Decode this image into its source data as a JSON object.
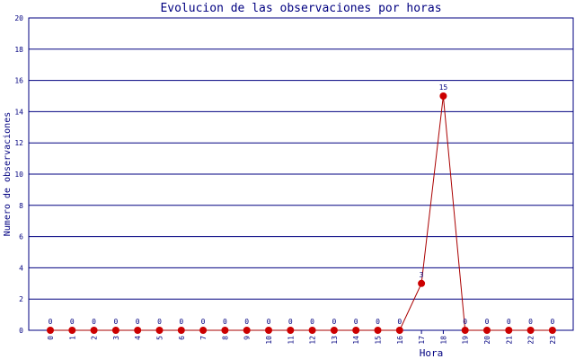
{
  "chart_data": {
    "type": "line",
    "title": "Evolucion de las observaciones por horas",
    "x_label": "Hora",
    "y_label": "Numero de observaciones",
    "categories": [
      "0",
      "1",
      "2",
      "3",
      "4",
      "5",
      "6",
      "7",
      "8",
      "9",
      "10",
      "11",
      "12",
      "13",
      "14",
      "15",
      "16",
      "17",
      "18",
      "19",
      "20",
      "21",
      "22",
      "23"
    ],
    "values": [
      0,
      0,
      0,
      0,
      0,
      0,
      0,
      0,
      0,
      0,
      0,
      0,
      0,
      0,
      0,
      0,
      0,
      3,
      15,
      0,
      0,
      0,
      0,
      0
    ],
    "color": "#cc0000",
    "ylim": [
      0,
      20
    ],
    "yticks": [
      0,
      2,
      4,
      6,
      8,
      10,
      12,
      14,
      16,
      18,
      20
    ],
    "grid": true
  }
}
